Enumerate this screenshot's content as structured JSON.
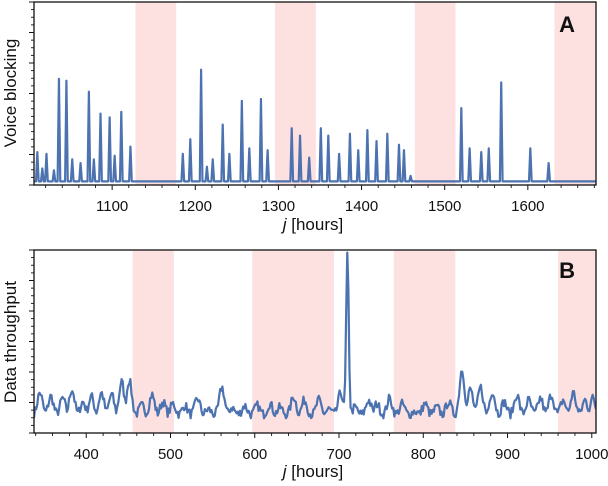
{
  "chart_data": [
    {
      "type": "line",
      "panel_label": "A",
      "xlabel_italic": "j",
      "xlabel_rest": " [hours]",
      "ylabel": "Voice blocking",
      "xlim": [
        1006,
        1682
      ],
      "ylim": [
        0,
        1
      ],
      "xticks": [
        1100,
        1200,
        1300,
        1400,
        1500,
        1600
      ],
      "y_tick_labels": false,
      "grid": false,
      "line_color": "#4c72b0",
      "shade_color": "#fde0e0",
      "shaded_regions": [
        [
          1128,
          1177
        ],
        [
          1296,
          1345
        ],
        [
          1464,
          1513
        ],
        [
          1632,
          1682
        ]
      ],
      "baseline": 0.02,
      "spikes": [
        [
          1010,
          0.18
        ],
        [
          1016,
          0.09
        ],
        [
          1021,
          0.17
        ],
        [
          1030,
          0.08
        ],
        [
          1036,
          0.58
        ],
        [
          1045,
          0.57
        ],
        [
          1052,
          0.14
        ],
        [
          1062,
          0.12
        ],
        [
          1072,
          0.51
        ],
        [
          1078,
          0.14
        ],
        [
          1086,
          0.39
        ],
        [
          1097,
          0.37
        ],
        [
          1103,
          0.16
        ],
        [
          1111,
          0.4
        ],
        [
          1122,
          0.21
        ],
        [
          1185,
          0.17
        ],
        [
          1194,
          0.25
        ],
        [
          1207,
          0.63
        ],
        [
          1214,
          0.1
        ],
        [
          1221,
          0.14
        ],
        [
          1233,
          0.33
        ],
        [
          1241,
          0.17
        ],
        [
          1256,
          0.46
        ],
        [
          1265,
          0.2
        ],
        [
          1279,
          0.47
        ],
        [
          1287,
          0.19
        ],
        [
          1316,
          0.31
        ],
        [
          1326,
          0.27
        ],
        [
          1337,
          0.15
        ],
        [
          1351,
          0.31
        ],
        [
          1360,
          0.27
        ],
        [
          1373,
          0.17
        ],
        [
          1386,
          0.28
        ],
        [
          1396,
          0.19
        ],
        [
          1407,
          0.3
        ],
        [
          1418,
          0.24
        ],
        [
          1431,
          0.28
        ],
        [
          1445,
          0.22
        ],
        [
          1451,
          0.19
        ],
        [
          1459,
          0.05
        ],
        [
          1520,
          0.42
        ],
        [
          1530,
          0.2
        ],
        [
          1544,
          0.18
        ],
        [
          1553,
          0.2
        ],
        [
          1568,
          0.56
        ],
        [
          1603,
          0.2
        ],
        [
          1625,
          0.12
        ]
      ]
    },
    {
      "type": "line",
      "panel_label": "B",
      "xlabel_italic": "j",
      "xlabel_rest": " [hours]",
      "ylabel": "Data throughput",
      "xlim": [
        338,
        1005
      ],
      "ylim": [
        0,
        1
      ],
      "xticks": [
        400,
        500,
        600,
        700,
        800,
        900,
        1000
      ],
      "y_tick_labels": false,
      "grid": false,
      "line_color": "#4c72b0",
      "shade_color": "#fde0e0",
      "shaded_regions": [
        [
          455,
          504
        ],
        [
          597,
          694
        ],
        [
          765,
          838
        ],
        [
          960,
          1005
        ]
      ],
      "baseline": 0.1,
      "bumps": [
        [
          345,
          0.22
        ],
        [
          358,
          0.2
        ],
        [
          372,
          0.19
        ],
        [
          383,
          0.24
        ],
        [
          396,
          0.17
        ],
        [
          406,
          0.2
        ],
        [
          418,
          0.22
        ],
        [
          430,
          0.21
        ],
        [
          442,
          0.28
        ],
        [
          451,
          0.29
        ],
        [
          466,
          0.15
        ],
        [
          478,
          0.21
        ],
        [
          491,
          0.17
        ],
        [
          503,
          0.16
        ],
        [
          517,
          0.15
        ],
        [
          532,
          0.19
        ],
        [
          545,
          0.13
        ],
        [
          561,
          0.25
        ],
        [
          573,
          0.14
        ],
        [
          588,
          0.15
        ],
        [
          603,
          0.15
        ],
        [
          618,
          0.16
        ],
        [
          630,
          0.14
        ],
        [
          646,
          0.2
        ],
        [
          659,
          0.18
        ],
        [
          676,
          0.18
        ],
        [
          688,
          0.13
        ],
        [
          702,
          0.22
        ],
        [
          710,
          0.97
        ],
        [
          719,
          0.14
        ],
        [
          735,
          0.18
        ],
        [
          745,
          0.16
        ],
        [
          760,
          0.19
        ],
        [
          775,
          0.16
        ],
        [
          790,
          0.12
        ],
        [
          802,
          0.16
        ],
        [
          816,
          0.14
        ],
        [
          830,
          0.17
        ],
        [
          846,
          0.35
        ],
        [
          856,
          0.24
        ],
        [
          868,
          0.25
        ],
        [
          882,
          0.23
        ],
        [
          896,
          0.17
        ],
        [
          911,
          0.21
        ],
        [
          925,
          0.18
        ],
        [
          939,
          0.19
        ],
        [
          952,
          0.21
        ],
        [
          966,
          0.18
        ],
        [
          978,
          0.22
        ],
        [
          992,
          0.18
        ],
        [
          1001,
          0.19
        ]
      ]
    }
  ]
}
